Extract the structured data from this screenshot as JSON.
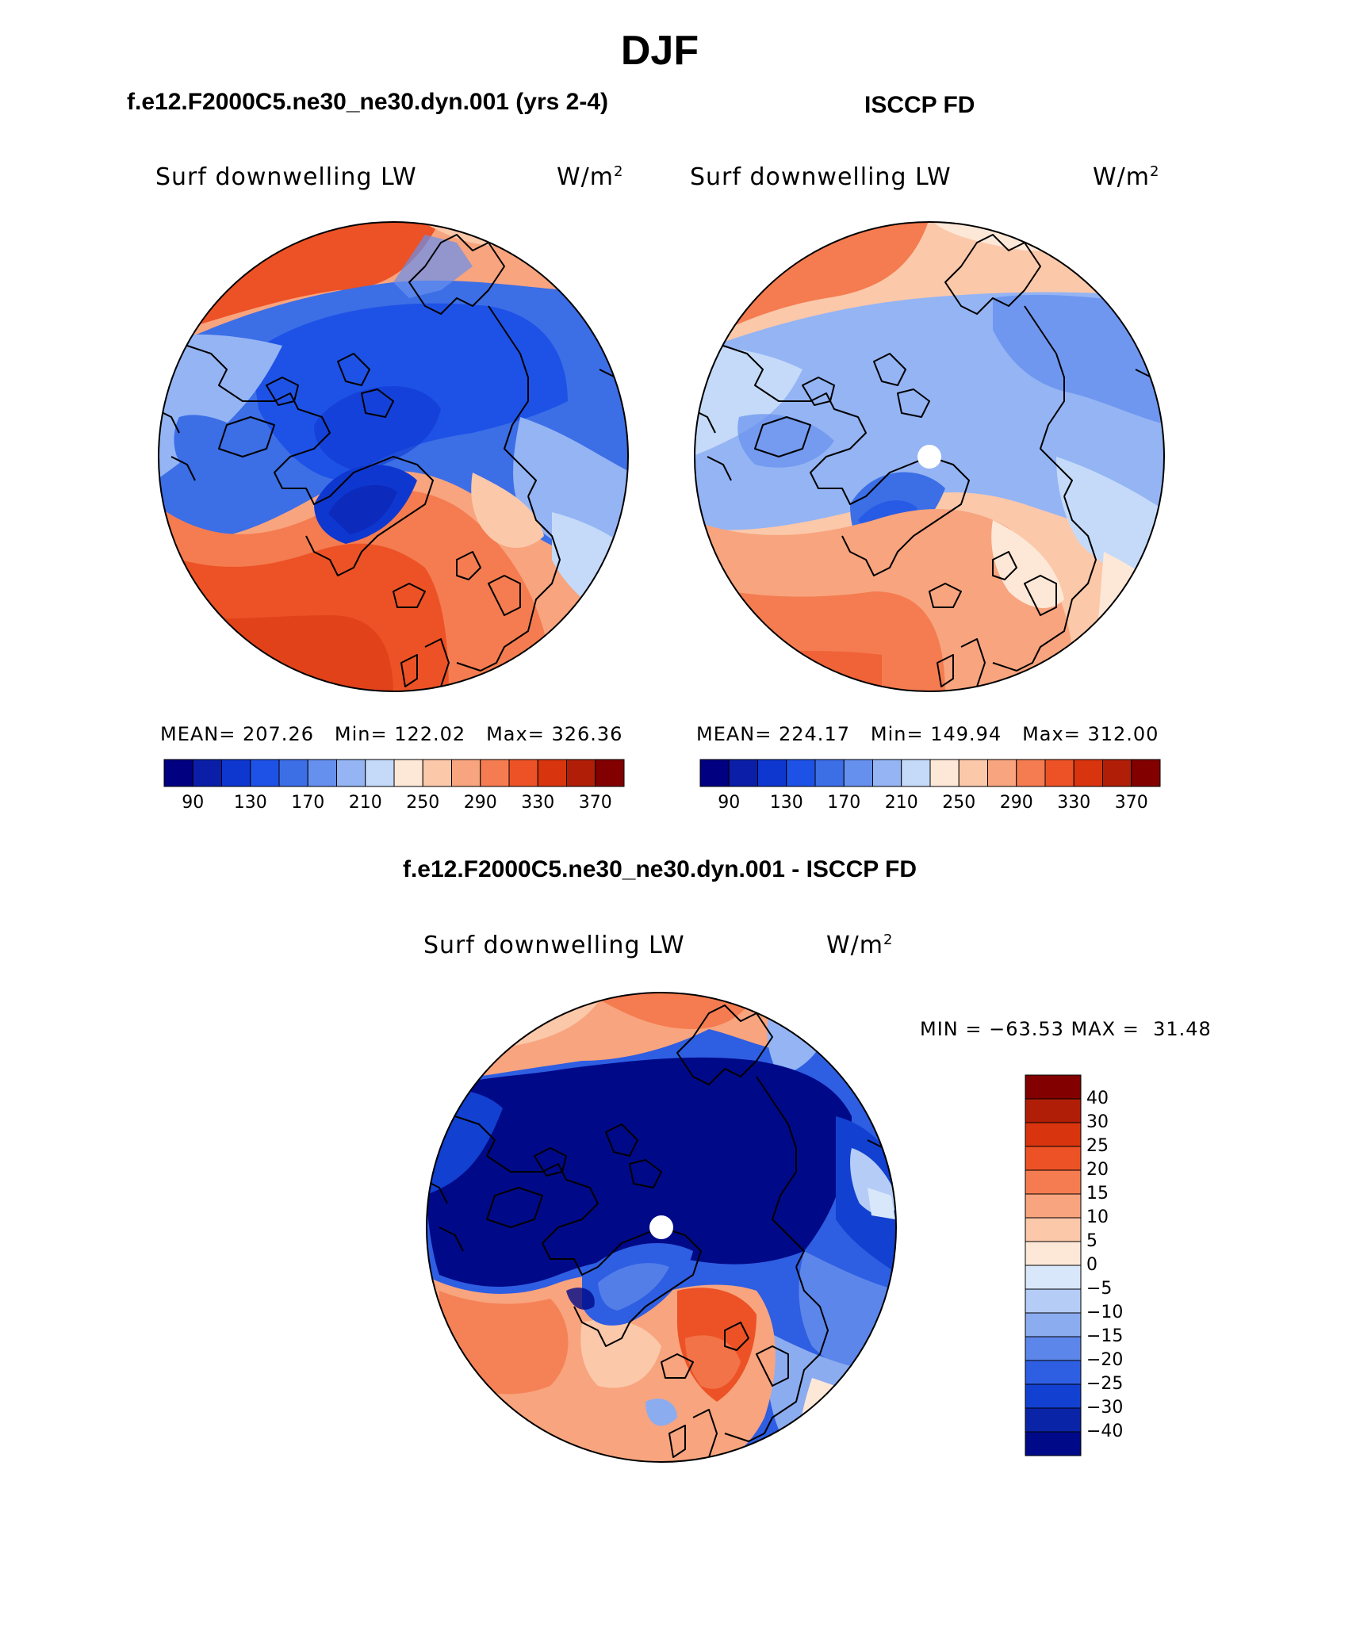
{
  "figure": {
    "title": "DJF"
  },
  "panels": [
    {
      "id": "model",
      "case_title": "f.e12.F2000C5.ne30_ne30.dyn.001 (yrs 2-4)",
      "variable": "Surf downwelling LW",
      "units": "W/m",
      "units_exp": "2",
      "stats": {
        "mean_label": "MEAN=",
        "mean": "207.26",
        "min_label": "Min=",
        "min": "122.02",
        "max_label": "Max=",
        "max": "326.36"
      },
      "colorbar": {
        "colors": [
          "#000080",
          "#0a1ea8",
          "#0e37d0",
          "#1e52e6",
          "#3c6ee6",
          "#6690ee",
          "#94b4f4",
          "#c4daf8",
          "#fde8d8",
          "#fbc8aa",
          "#f8a47e",
          "#f47c50",
          "#ec5226",
          "#d8340e",
          "#b01e08",
          "#820000"
        ],
        "tick_labels": [
          "90",
          "130",
          "170",
          "210",
          "250",
          "290",
          "330",
          "370"
        ]
      }
    },
    {
      "id": "obs",
      "case_title": "ISCCP FD",
      "variable": "Surf downwelling LW",
      "units": "W/m",
      "units_exp": "2",
      "stats": {
        "mean_label": "MEAN=",
        "mean": "224.17",
        "min_label": "Min=",
        "min": "149.94",
        "max_label": "Max=",
        "max": "312.00"
      },
      "colorbar": {
        "colors": [
          "#000080",
          "#0a1ea8",
          "#0e37d0",
          "#1e52e6",
          "#3c6ee6",
          "#6690ee",
          "#94b4f4",
          "#c4daf8",
          "#fde8d8",
          "#fbc8aa",
          "#f8a47e",
          "#f47c50",
          "#ec5226",
          "#d8340e",
          "#b01e08",
          "#820000"
        ],
        "tick_labels": [
          "90",
          "130",
          "170",
          "210",
          "250",
          "290",
          "330",
          "370"
        ]
      }
    },
    {
      "id": "diff",
      "case_title": "f.e12.F2000C5.ne30_ne30.dyn.001 - ISCCP FD",
      "variable": "Surf downwelling LW",
      "units": "W/m",
      "units_exp": "2",
      "stats_text": "MIN = −63.53 MAX =  31.48",
      "colorbar": {
        "colors": [
          "#820000",
          "#b01e08",
          "#d8340e",
          "#ec5226",
          "#f47c50",
          "#f8a47e",
          "#fbc8aa",
          "#fde8d8",
          "#d8e8fa",
          "#b4ccf6",
          "#8cacf0",
          "#5c86ea",
          "#2e5ee2",
          "#1240d0",
          "#0a24a8",
          "#000a88"
        ],
        "tick_labels": [
          "40",
          "30",
          "25",
          "20",
          "15",
          "10",
          "5",
          "0",
          "−5",
          "−10",
          "−15",
          "−20",
          "−25",
          "−30",
          "−40"
        ]
      }
    }
  ],
  "palette": {
    "deep_blue": "#000a88",
    "blue": "#2e5ee2",
    "light_blue": "#94b4f4",
    "cream": "#fde8d8",
    "salmon": "#f8a47e",
    "orange_red": "#ec5226"
  }
}
